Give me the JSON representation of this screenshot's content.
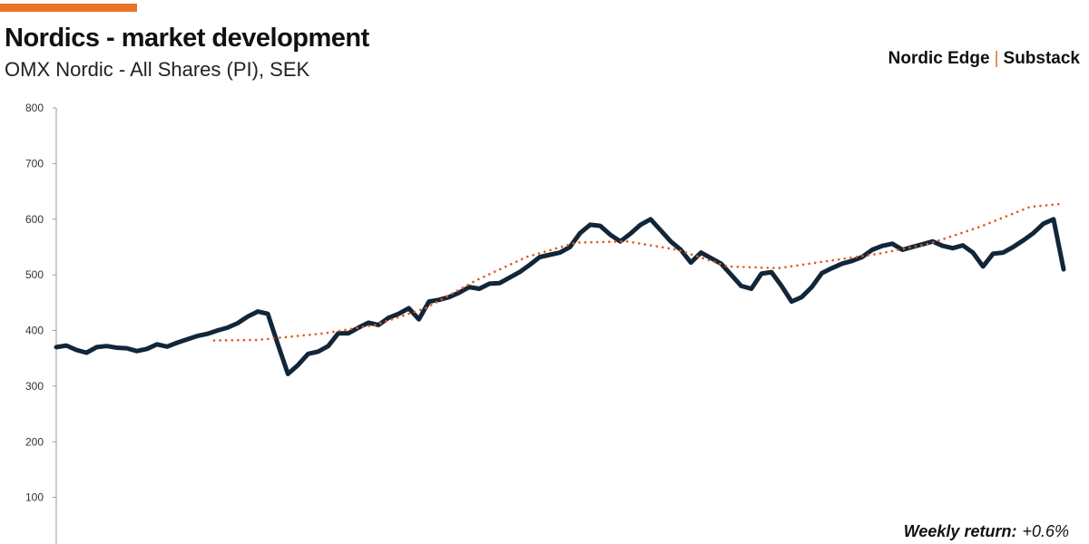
{
  "header": {
    "title": "Nordics - market development",
    "subtitle": "OMX Nordic - All Shares (PI), SEK",
    "brand_left": "Nordic Edge",
    "brand_separator": "|",
    "brand_right": "Substack"
  },
  "footer": {
    "weekly_label": "Weekly return:",
    "weekly_value": "+0.6%"
  },
  "colors": {
    "accent": "#e8732a",
    "series_main": "#12263a",
    "series_ma": "#e05a1e",
    "axis": "#999999"
  },
  "chart_data": {
    "type": "line",
    "title": "Nordics - market development",
    "subtitle": "OMX Nordic - All Shares (PI), SEK",
    "ylim": [
      0,
      800
    ],
    "yticks": [
      100,
      200,
      300,
      400,
      500,
      600,
      700,
      800
    ],
    "grid": false,
    "legend": "none",
    "series": [
      {
        "style": "solid",
        "x": [
          0,
          3,
          6,
          9,
          12,
          15,
          18,
          21,
          24,
          27,
          30,
          33,
          36,
          39,
          42,
          45,
          48,
          51,
          54,
          57,
          60,
          63,
          66,
          69,
          72,
          75,
          78,
          81,
          84,
          87,
          90,
          93,
          96,
          99,
          102,
          105,
          108,
          111,
          114,
          117,
          120,
          123,
          126,
          129,
          132,
          135,
          138,
          141,
          144,
          147,
          150,
          153,
          156,
          159,
          162,
          165,
          168,
          171,
          174,
          177,
          180,
          183,
          186,
          189,
          192,
          195,
          198,
          201,
          204,
          207,
          210,
          213,
          216,
          219,
          222,
          225,
          228,
          231,
          234,
          237,
          240,
          243,
          246,
          249,
          252,
          255,
          258,
          261,
          264,
          267,
          270,
          273,
          276,
          279,
          282,
          285,
          288,
          291,
          294,
          297,
          300
        ],
        "values": [
          370,
          373,
          365,
          360,
          370,
          372,
          369,
          368,
          363,
          367,
          375,
          371,
          378,
          384,
          390,
          394,
          400,
          405,
          413,
          425,
          434,
          430,
          375,
          322,
          338,
          358,
          362,
          372,
          395,
          395,
          405,
          414,
          410,
          423,
          430,
          440,
          420,
          452,
          455,
          460,
          468,
          478,
          475,
          484,
          485,
          495,
          505,
          518,
          532,
          536,
          540,
          550,
          575,
          590,
          588,
          572,
          560,
          574,
          590,
          600,
          580,
          560,
          545,
          522,
          540,
          530,
          520,
          500,
          480,
          475,
          502,
          505,
          480,
          452,
          460,
          478,
          503,
          512,
          520,
          525,
          532,
          545,
          552,
          556,
          545,
          550,
          555,
          560,
          552,
          548,
          553,
          540,
          515,
          538,
          540,
          550,
          562,
          575,
          592,
          600,
          510
        ],
        "x_last": 300,
        "value_note": ""
      },
      {
        "style": "dotted",
        "x": [
          47,
          60,
          80,
          95,
          110,
          125,
          140,
          155,
          170,
          185,
          200,
          215,
          230,
          245,
          260,
          275,
          290,
          300
        ],
        "values": [
          382,
          383,
          395,
          410,
          440,
          490,
          532,
          558,
          560,
          545,
          515,
          512,
          525,
          538,
          556,
          586,
          622,
          628
        ]
      }
    ]
  }
}
